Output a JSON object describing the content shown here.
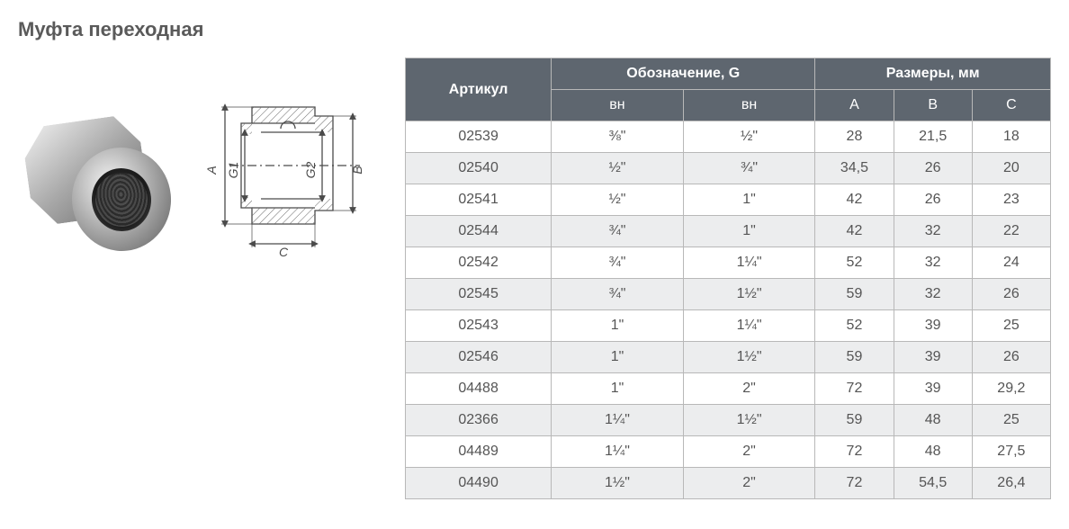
{
  "title": "Муфта переходная",
  "table": {
    "header": {
      "article": "Артикул",
      "designation": "Обозначение, G",
      "dimensions": "Размеры, мм",
      "vn1": "вн",
      "vn2": "вн",
      "A": "A",
      "B": "B",
      "C": "C"
    },
    "header_bg": "#5e666f",
    "header_fg": "#ffffff",
    "border_color": "#b8b8b8",
    "alt_bg": "#ecedee",
    "cell_fg": "#555555",
    "rows": [
      {
        "art": "02539",
        "vn1": "⅜\"",
        "vn2": "½\"",
        "A": "28",
        "B": "21,5",
        "C": "18",
        "alt": false
      },
      {
        "art": "02540",
        "vn1": "½\"",
        "vn2": "¾\"",
        "A": "34,5",
        "B": "26",
        "C": "20",
        "alt": true
      },
      {
        "art": "02541",
        "vn1": "½\"",
        "vn2": "1\"",
        "A": "42",
        "B": "26",
        "C": "23",
        "alt": false
      },
      {
        "art": "02544",
        "vn1": "¾\"",
        "vn2": "1\"",
        "A": "42",
        "B": "32",
        "C": "22",
        "alt": true
      },
      {
        "art": "02542",
        "vn1": "¾\"",
        "vn2": "1¼\"",
        "A": "52",
        "B": "32",
        "C": "24",
        "alt": false
      },
      {
        "art": "02545",
        "vn1": "¾\"",
        "vn2": "1½\"",
        "A": "59",
        "B": "32",
        "C": "26",
        "alt": true
      },
      {
        "art": "02543",
        "vn1": "1\"",
        "vn2": "1¼\"",
        "A": "52",
        "B": "39",
        "C": "25",
        "alt": false
      },
      {
        "art": "02546",
        "vn1": "1\"",
        "vn2": "1½\"",
        "A": "59",
        "B": "39",
        "C": "26",
        "alt": true
      },
      {
        "art": "04488",
        "vn1": "1\"",
        "vn2": "2\"",
        "A": "72",
        "B": "39",
        "C": "29,2",
        "alt": false
      },
      {
        "art": "02366",
        "vn1": "1¼\"",
        "vn2": "1½\"",
        "A": "59",
        "B": "48",
        "C": "25",
        "alt": true
      },
      {
        "art": "04489",
        "vn1": "1¼\"",
        "vn2": "2\"",
        "A": "72",
        "B": "48",
        "C": "27,5",
        "alt": false
      },
      {
        "art": "04490",
        "vn1": "1½\"",
        "vn2": "2\"",
        "A": "72",
        "B": "54,5",
        "C": "26,4",
        "alt": true
      }
    ],
    "col_widths": [
      "120px",
      "120px",
      "120px",
      "120px",
      "120px",
      "120px"
    ]
  },
  "diagram": {
    "labels": {
      "A": "A",
      "B": "B",
      "C": "C",
      "G1": "G1",
      "G2": "G2"
    },
    "line_color": "#4a4a4a",
    "hatch_color": "#6a6a6a",
    "font": "italic 14px Arial"
  }
}
